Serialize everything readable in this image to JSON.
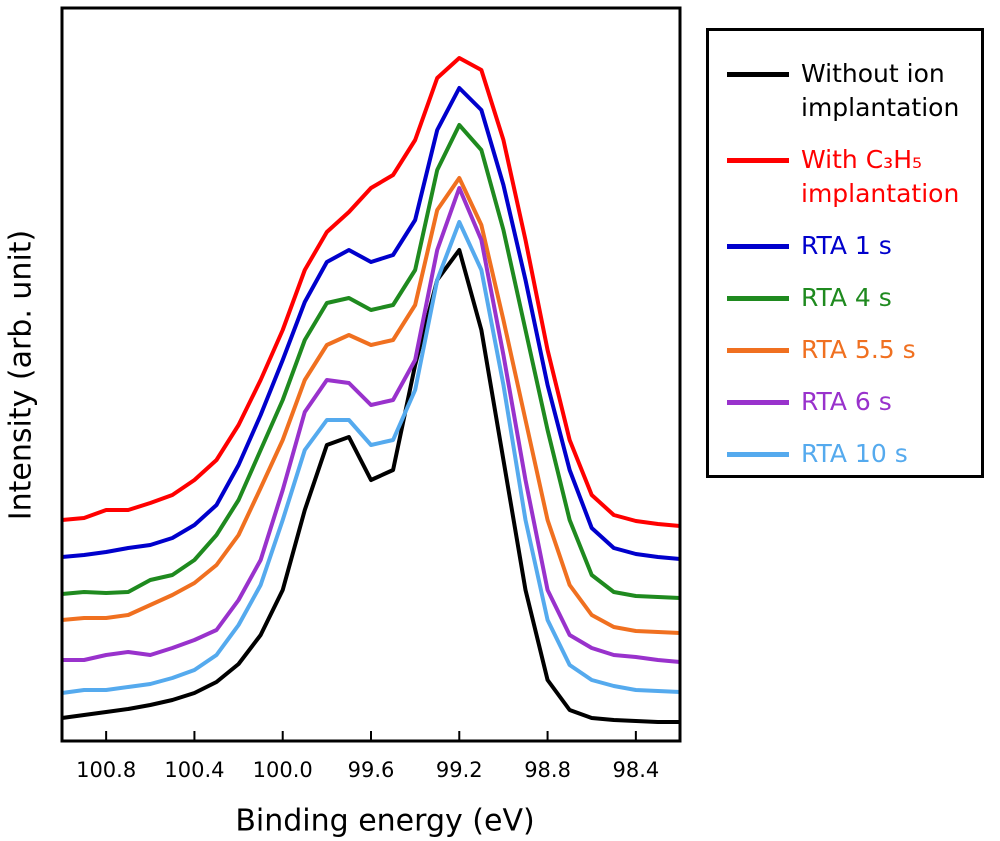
{
  "chart_data": {
    "type": "line",
    "x_label": "Binding energy (eV)",
    "y_label": "Intensity (arb. unit)",
    "x": [
      101.0,
      100.9,
      100.8,
      100.7,
      100.6,
      100.5,
      100.4,
      100.3,
      100.2,
      100.1,
      100.0,
      99.9,
      99.8,
      99.7,
      99.6,
      99.5,
      99.4,
      99.3,
      99.2,
      99.1,
      99.0,
      98.9,
      98.8,
      98.7,
      98.6,
      98.5,
      98.4,
      98.3,
      98.2
    ],
    "xlim": [
      101.0,
      98.2
    ],
    "xticks": [
      100.8,
      100.4,
      {
        "value": 100.0,
        "label": "100.0"
      },
      99.6,
      99.2,
      98.8,
      98.4
    ],
    "ylim": [
      0,
      733
    ],
    "series": [
      {
        "name": "Without ion implantation",
        "color": "#000000",
        "values": [
          23,
          26,
          29,
          32,
          36,
          41,
          48,
          59,
          77,
          106,
          151,
          231,
          296,
          304,
          261,
          271,
          376,
          461,
          491,
          411,
          281,
          151,
          61,
          31,
          23,
          21,
          20,
          19,
          19
        ]
      },
      {
        "name": "With C₃H₅ implantation",
        "color": "#ff0000",
        "values": [
          221,
          223,
          231,
          231,
          238,
          246,
          261,
          281,
          316,
          361,
          411,
          471,
          509,
          529,
          553,
          566,
          601,
          663,
          683,
          671,
          601,
          501,
          391,
          301,
          246,
          226,
          220,
          217,
          215
        ]
      },
      {
        "name": "RTA 1 s",
        "color": "#0000cc",
        "values": [
          184,
          186,
          189,
          193,
          196,
          203,
          216,
          236,
          276,
          326,
          381,
          439,
          479,
          491,
          479,
          486,
          521,
          611,
          653,
          631,
          556,
          461,
          356,
          271,
          213,
          193,
          187,
          184,
          182
        ]
      },
      {
        "name": "RTA 4 s",
        "color": "#1f8a1f",
        "values": [
          147,
          149,
          148,
          149,
          161,
          166,
          181,
          206,
          241,
          291,
          341,
          401,
          438,
          443,
          431,
          436,
          471,
          571,
          616,
          591,
          511,
          411,
          311,
          221,
          166,
          149,
          145,
          144,
          143
        ]
      },
      {
        "name": "RTA 5.5 s",
        "color": "#f07020",
        "values": [
          121,
          123,
          123,
          126,
          136,
          146,
          158,
          176,
          206,
          253,
          301,
          361,
          396,
          406,
          396,
          401,
          436,
          531,
          563,
          516,
          421,
          321,
          221,
          156,
          126,
          114,
          110,
          109,
          108
        ]
      },
      {
        "name": "RTA 6 s",
        "color": "#9932cc",
        "values": [
          81,
          81,
          86,
          89,
          86,
          93,
          101,
          111,
          141,
          181,
          251,
          329,
          361,
          358,
          336,
          341,
          381,
          491,
          553,
          501,
          386,
          261,
          151,
          106,
          93,
          86,
          84,
          81,
          79
        ]
      },
      {
        "name": "RTA 10 s",
        "color": "#55aaee",
        "values": [
          48,
          51,
          51,
          54,
          57,
          63,
          71,
          86,
          116,
          156,
          221,
          291,
          321,
          321,
          296,
          301,
          351,
          461,
          519,
          471,
          356,
          221,
          121,
          76,
          61,
          55,
          51,
          50,
          49
        ]
      }
    ]
  }
}
